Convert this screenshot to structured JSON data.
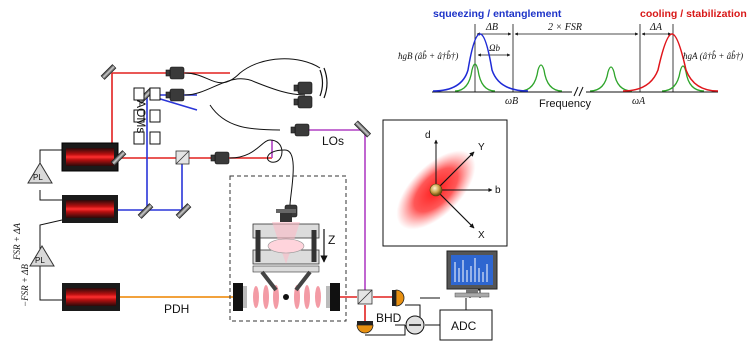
{
  "spectrum": {
    "header_left": "squeezing / entanglement",
    "header_right": "cooling / stabilization",
    "fsr_label": "2 × FSR",
    "delta_b": "ΔB",
    "delta_a": "ΔA",
    "omega_b_small": "Ωb",
    "hg_b_label": "ħgB (âb̂ + â†b̂†)",
    "hg_a_label": "ħgA (â†b̂ + âb̂†)",
    "omega_b_axis": "ωB",
    "omega_a_axis": "ωA",
    "xlabel": "Frequency",
    "colors": {
      "blue": "#1f2bd6",
      "red": "#e0151b",
      "green": "#2ea52b"
    }
  },
  "setup": {
    "aoms_label": "AOMs",
    "los_label": "LOs",
    "pdh_label": "PDH",
    "bhd_label": "BHD",
    "adc_label": "ADC",
    "z_label": "Z",
    "pl_label": "PL",
    "fsr_plus_label": "FSR + ΔA",
    "fsr_minus_label": "−FSR + ΔB",
    "colors": {
      "beam_red": "#e2201f",
      "beam_blue": "#2a35d8",
      "beam_purple": "#b040c4",
      "beam_orange": "#f2a23c"
    }
  },
  "phase_space": {
    "axis_d": "d",
    "axis_b": "b",
    "axis_x": "X",
    "axis_y": "Y",
    "colors": {
      "cloud": "#ff2a2a",
      "ball": "#c9a24a"
    }
  }
}
